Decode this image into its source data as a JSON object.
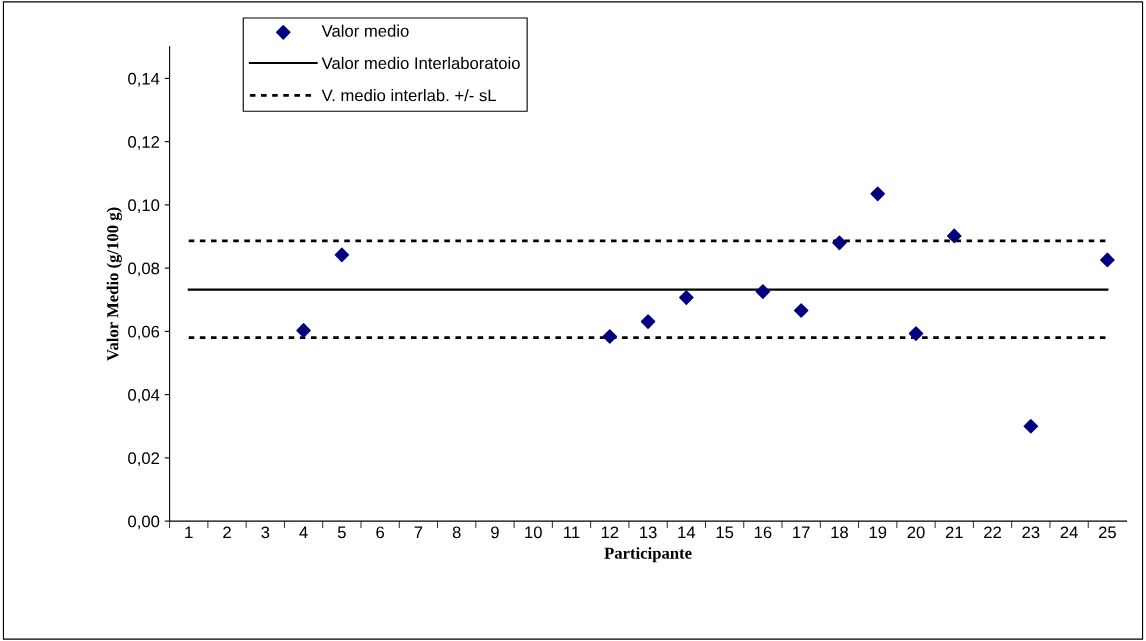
{
  "chart_data": {
    "type": "scatter",
    "xlabel": "Participante",
    "ylabel": "Valor Medio (g/100 g)",
    "categories": [
      "1",
      "2",
      "3",
      "4",
      "5",
      "6",
      "7",
      "8",
      "9",
      "10",
      "11",
      "12",
      "13",
      "14",
      "15",
      "16",
      "17",
      "18",
      "19",
      "20",
      "21",
      "22",
      "23",
      "24",
      "25"
    ],
    "series": [
      {
        "name": "Valor medio",
        "color": "#000080",
        "values": [
          null,
          null,
          null,
          0.0603,
          0.0842,
          null,
          null,
          null,
          null,
          null,
          null,
          0.0584,
          0.0631,
          0.0707,
          null,
          0.0726,
          0.0666,
          0.088,
          0.1035,
          0.0593,
          0.0902,
          null,
          0.03,
          null,
          0.0826
        ]
      }
    ],
    "ref_lines": [
      {
        "axis": "y",
        "value": 0.0732,
        "label": "Valor medio Interlaboratoio",
        "color": "#000000",
        "line_style": "solid"
      },
      {
        "axis": "y",
        "value": 0.0886,
        "label": "V. medio interlab. +/- sL",
        "color": "#000000",
        "line_style": "dotted"
      },
      {
        "axis": "y",
        "value": 0.058,
        "label": null,
        "color": "#000000",
        "line_style": "dotted"
      }
    ],
    "ylim": [
      0,
      0.15
    ],
    "yticks": [
      {
        "value": 0,
        "label": "0,00"
      },
      {
        "value": 0.02,
        "label": "0,02"
      },
      {
        "value": 0.04,
        "label": "0,04"
      },
      {
        "value": 0.06,
        "label": "0,06"
      },
      {
        "value": 0.08,
        "label": "0,08"
      },
      {
        "value": 0.1,
        "label": "0,10"
      },
      {
        "value": 0.12,
        "label": "0,12"
      },
      {
        "value": 0.14,
        "label": "0,14"
      }
    ],
    "marker": "diamond",
    "grid": false,
    "legend": "top left"
  }
}
